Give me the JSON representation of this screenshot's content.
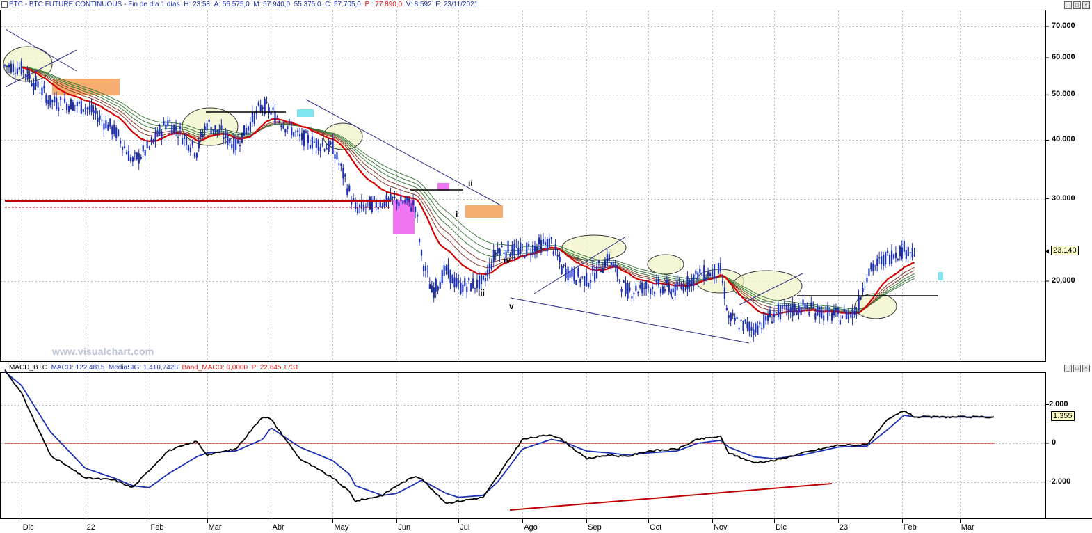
{
  "price_header": {
    "symbol": "BTC",
    "name": "BTC FUTURE CONTINUOUS",
    "period": "Fin de día 1 días",
    "high": "H: 23:58",
    "open": "A: 56.575,0",
    "max": "M: 57.940,0",
    "low": "55.375,0",
    "close": "C: 57.705,0",
    "p": "P : 77.890,0",
    "volume": "V: 8.592",
    "date": "F: 23/11/2021"
  },
  "macd_header": {
    "name": "MACD_BTC",
    "macd": "MACD: 122,4815",
    "signal": "MediaSIG: 1.410,7428",
    "band": "Band_MACD: 0,0000",
    "p": "P: 22.645,1731"
  },
  "watermark": "www.visualchart.com",
  "price_axis": [
    "70.000",
    "60.000",
    "50.000",
    "40.000",
    "30.000",
    "20.000"
  ],
  "price_last_tag": "23.140",
  "macd_axis": [
    "2.000",
    "0",
    "-2.000"
  ],
  "macd_last_tag": "1.355",
  "x_labels": [
    "Dic",
    "22",
    "Feb",
    "Mar",
    "Abr",
    "May",
    "Jun",
    "Jul",
    "Ago",
    "Sep",
    "Oct",
    "Nov",
    "Dic",
    "23",
    "Feb",
    "Mar"
  ],
  "wave_labels": [
    "ii",
    "i",
    "iii",
    "iv",
    "v"
  ],
  "colors": {
    "candle": "#1a2fb4",
    "ma_red": "#d40000",
    "ma_green": "#3c7a3c",
    "ma_brown": "#8a3a2a",
    "macd": "#000000",
    "signal": "#1a2fb4",
    "zero": "#c00000",
    "orange_zone": "#f7a460",
    "magenta_zone": "#ee66ee",
    "cyan_zone": "#7fe6f0",
    "ellipse_fill": "#f1f3c8"
  },
  "chart_data": [
    {
      "type": "line",
      "title": "BTC FUTURE CONTINUOUS",
      "ylim": [
        15000,
        75000
      ],
      "y_scale": "log",
      "grid": true,
      "x": [
        "2021-11-23",
        "2021-12-01",
        "2021-12-15",
        "2022-01-01",
        "2022-01-15",
        "2022-01-24",
        "2022-02-01",
        "2022-02-10",
        "2022-02-24",
        "2022-03-01",
        "2022-03-15",
        "2022-03-28",
        "2022-04-01",
        "2022-04-15",
        "2022-05-01",
        "2022-05-09",
        "2022-05-12",
        "2022-05-25",
        "2022-06-01",
        "2022-06-10",
        "2022-06-13",
        "2022-06-18",
        "2022-06-25",
        "2022-07-01",
        "2022-07-13",
        "2022-07-20",
        "2022-08-01",
        "2022-08-15",
        "2022-08-20",
        "2022-09-01",
        "2022-09-12",
        "2022-09-20",
        "2022-10-01",
        "2022-10-15",
        "2022-10-25",
        "2022-11-05",
        "2022-11-09",
        "2022-11-21",
        "2022-12-01",
        "2022-12-15",
        "2023-01-01",
        "2023-01-10",
        "2023-01-15",
        "2023-01-25",
        "2023-02-02",
        "2023-02-07"
      ],
      "series": [
        {
          "name": "BTC",
          "values": [
            57705,
            57000,
            48500,
            47200,
            42000,
            36000,
            38500,
            44000,
            38000,
            43500,
            39000,
            47500,
            46000,
            40500,
            38500,
            31000,
            28500,
            29500,
            29800,
            29000,
            22500,
            19000,
            21000,
            19500,
            19800,
            23500,
            23200,
            24200,
            21300,
            20000,
            22400,
            19000,
            19500,
            19200,
            20600,
            21000,
            16600,
            15800,
            17000,
            17600,
            16800,
            17300,
            20800,
            22600,
            23400,
            23140
          ]
        },
        {
          "name": "MACD",
          "values": [
            3800,
            2600,
            -600,
            -1800,
            -1900,
            -2300,
            -1400,
            -400,
            100,
            -600,
            -300,
            1400,
            1250,
            -800,
            -1800,
            -2500,
            -3000,
            -2700,
            -2200,
            -1700,
            -1800,
            -2400,
            -3100,
            -3000,
            -2800,
            -1700,
            200,
            450,
            200,
            -800,
            -600,
            -700,
            -400,
            -300,
            200,
            350,
            -500,
            -1000,
            -900,
            -500,
            -100,
            -100,
            -50,
            1200,
            1700,
            1355
          ]
        },
        {
          "name": "MediaSIG",
          "values": [
            3700,
            3000,
            600,
            -1300,
            -1800,
            -2200,
            -2300,
            -1600,
            -700,
            -500,
            -400,
            200,
            800,
            -200,
            -900,
            -1600,
            -2200,
            -2700,
            -2600,
            -2100,
            -1900,
            -2200,
            -2600,
            -2800,
            -2700,
            -2000,
            -300,
            200,
            100,
            -400,
            -500,
            -600,
            -500,
            -400,
            0,
            150,
            -200,
            -700,
            -800,
            -600,
            -200,
            -150,
            -150,
            700,
            1450,
            1355
          ]
        }
      ]
    }
  ]
}
